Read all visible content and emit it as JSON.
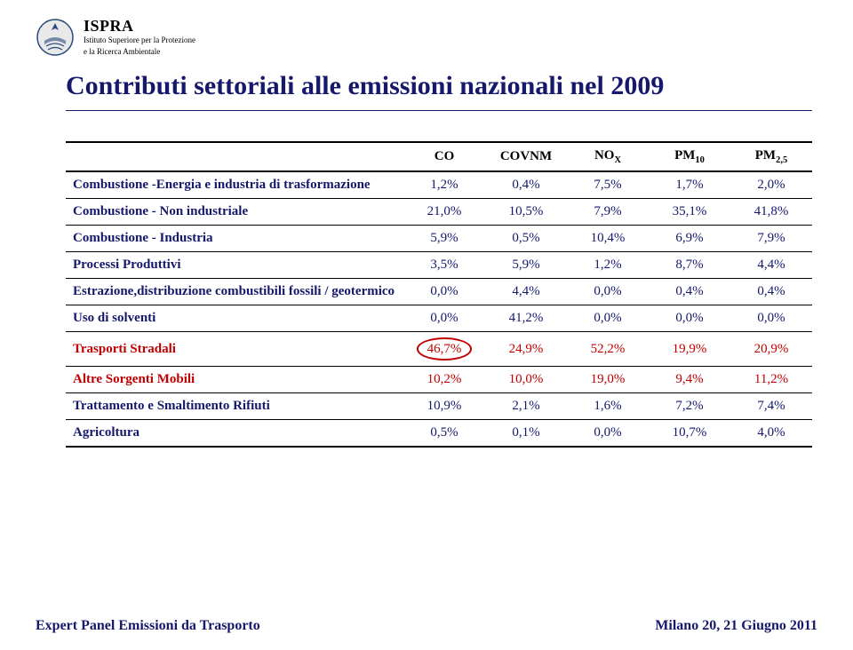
{
  "org": {
    "name": "ISPRA",
    "sub1": "Istituto Superiore per la Protezione",
    "sub2": "e la Ricerca Ambientale"
  },
  "title": "Contributi settoriali alle emissioni nazionali nel 2009",
  "table": {
    "columns": [
      "",
      "CO",
      "COVNM",
      "NO",
      "PM",
      "PM"
    ],
    "column_subs": [
      "",
      "",
      "",
      "X",
      "10",
      "2,5"
    ],
    "rows": [
      {
        "label": "Combustione -Energia e industria di trasformazione",
        "vals": [
          "1,2%",
          "0,4%",
          "7,5%",
          "1,7%",
          "2,0%"
        ],
        "color": "blue",
        "circle_col": -1
      },
      {
        "label": "Combustione - Non industriale",
        "vals": [
          "21,0%",
          "10,5%",
          "7,9%",
          "35,1%",
          "41,8%"
        ],
        "color": "blue",
        "circle_col": -1
      },
      {
        "label": "Combustione - Industria",
        "vals": [
          "5,9%",
          "0,5%",
          "10,4%",
          "6,9%",
          "7,9%"
        ],
        "color": "blue",
        "circle_col": -1
      },
      {
        "label": "Processi Produttivi",
        "vals": [
          "3,5%",
          "5,9%",
          "1,2%",
          "8,7%",
          "4,4%"
        ],
        "color": "blue",
        "circle_col": -1
      },
      {
        "label": "Estrazione,distribuzione combustibili fossili / geotermico",
        "vals": [
          "0,0%",
          "4,4%",
          "0,0%",
          "0,4%",
          "0,4%"
        ],
        "color": "blue",
        "circle_col": -1
      },
      {
        "label": "Uso di solventi",
        "vals": [
          "0,0%",
          "41,2%",
          "0,0%",
          "0,0%",
          "0,0%"
        ],
        "color": "blue",
        "circle_col": -1
      },
      {
        "label": "Trasporti Stradali",
        "vals": [
          "46,7%",
          "24,9%",
          "52,2%",
          "19,9%",
          "20,9%"
        ],
        "color": "red",
        "circle_col": 0
      },
      {
        "label": "Altre Sorgenti Mobili",
        "vals": [
          "10,2%",
          "10,0%",
          "19,0%",
          "9,4%",
          "11,2%"
        ],
        "color": "red",
        "circle_col": -1
      },
      {
        "label": "Trattamento e Smaltimento Rifiuti",
        "vals": [
          "10,9%",
          "2,1%",
          "1,6%",
          "7,2%",
          "7,4%"
        ],
        "color": "blue",
        "circle_col": -1
      },
      {
        "label": "Agricoltura",
        "vals": [
          "0,5%",
          "0,1%",
          "0,0%",
          "10,7%",
          "4,0%"
        ],
        "color": "blue",
        "circle_col": -1
      }
    ]
  },
  "footer": {
    "left": "Expert Panel Emissioni da Trasporto",
    "right": "Milano 20, 21 Giugno 2011"
  },
  "style": {
    "blue": "#15186b",
    "red": "#c00000",
    "black": "#000000",
    "background": "#ffffff",
    "title_fontsize": 30,
    "body_fontsize": 15,
    "footer_fontsize": 16,
    "emblem_stroke": "#274a7a",
    "emblem_fill": "#e9e9e9"
  }
}
